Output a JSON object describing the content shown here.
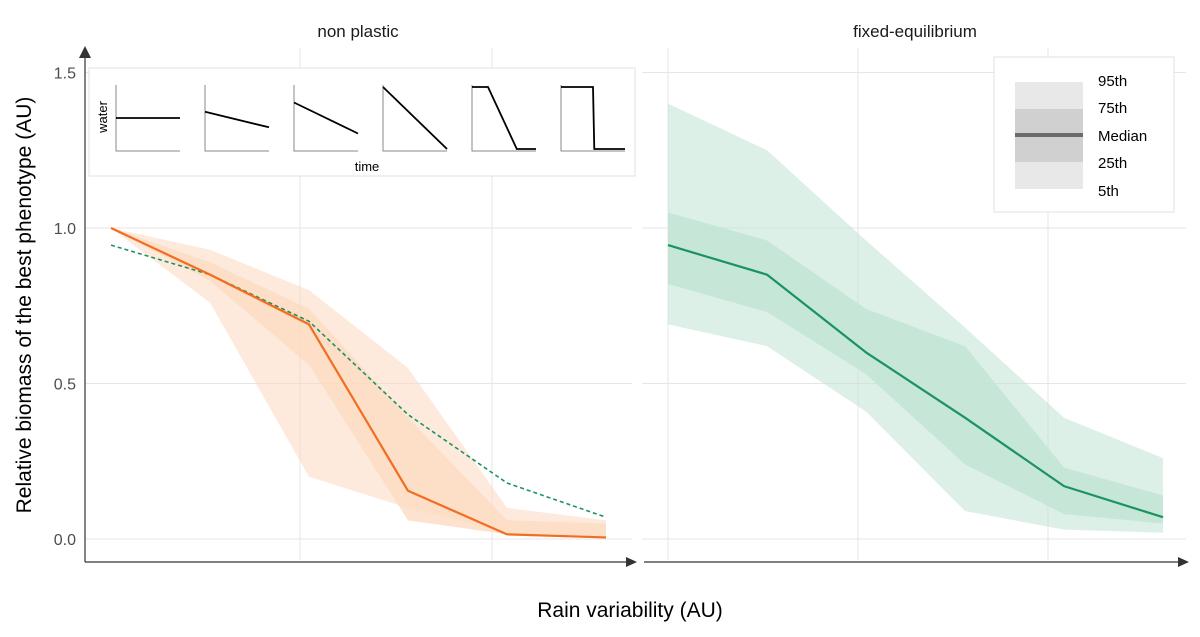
{
  "chart_data": {
    "type": "line",
    "ylabel": "Relative biomass of the best phenotype (AU)",
    "xlabel": "Rain variability (AU)",
    "ylim": [
      0,
      1.5
    ],
    "yticks": [
      0.0,
      0.5,
      1.0,
      1.5
    ],
    "ytick_labels": [
      "0.0",
      "0.5",
      "1.0",
      "1.5"
    ],
    "x": [
      1,
      2,
      3,
      4,
      5,
      6
    ],
    "grid": true,
    "legend_labels": [
      "95th",
      "75th",
      "Median",
      "25th",
      "5th"
    ],
    "colors": {
      "orange": "#f26d21",
      "green": "#1b9361",
      "orange_band": "#fcd9bf",
      "green_band": "#bfe3d3"
    },
    "panels": [
      {
        "title": "non plastic",
        "series": [
          {
            "median": [
              1.0,
              0.85,
              0.69,
              0.155,
              0.015,
              0.005
            ],
            "p05": [
              1.0,
              0.76,
              0.2,
              0.1,
              0.02,
              0.01
            ],
            "p25": [
              1.0,
              0.83,
              0.56,
              0.06,
              0.015,
              0.003
            ],
            "p75": [
              1.0,
              0.89,
              0.74,
              0.39,
              0.06,
              0.05
            ],
            "p95": [
              1.0,
              0.93,
              0.8,
              0.55,
              0.1,
              0.06
            ]
          }
        ],
        "reference_dashed": [
          0.945,
          0.85,
          0.7,
          0.4,
          0.18,
          0.07
        ],
        "inset": {
          "ylabel": "water",
          "xlabel": "time",
          "scenarios": [
            "flat",
            "slight-slope",
            "moderate-slope",
            "steep-slope",
            "delayed-drop",
            "step-drop"
          ]
        }
      },
      {
        "title": "fixed-equilibrium",
        "series": [
          {
            "median": [
              0.945,
              0.85,
              0.6,
              0.39,
              0.17,
              0.07
            ],
            "p05": [
              0.69,
              0.62,
              0.41,
              0.09,
              0.03,
              0.02
            ],
            "p25": [
              0.82,
              0.73,
              0.53,
              0.24,
              0.08,
              0.05
            ],
            "p75": [
              1.05,
              0.96,
              0.74,
              0.62,
              0.23,
              0.14
            ],
            "p95": [
              1.4,
              1.25,
              0.96,
              0.68,
              0.39,
              0.26
            ]
          }
        ]
      }
    ]
  }
}
